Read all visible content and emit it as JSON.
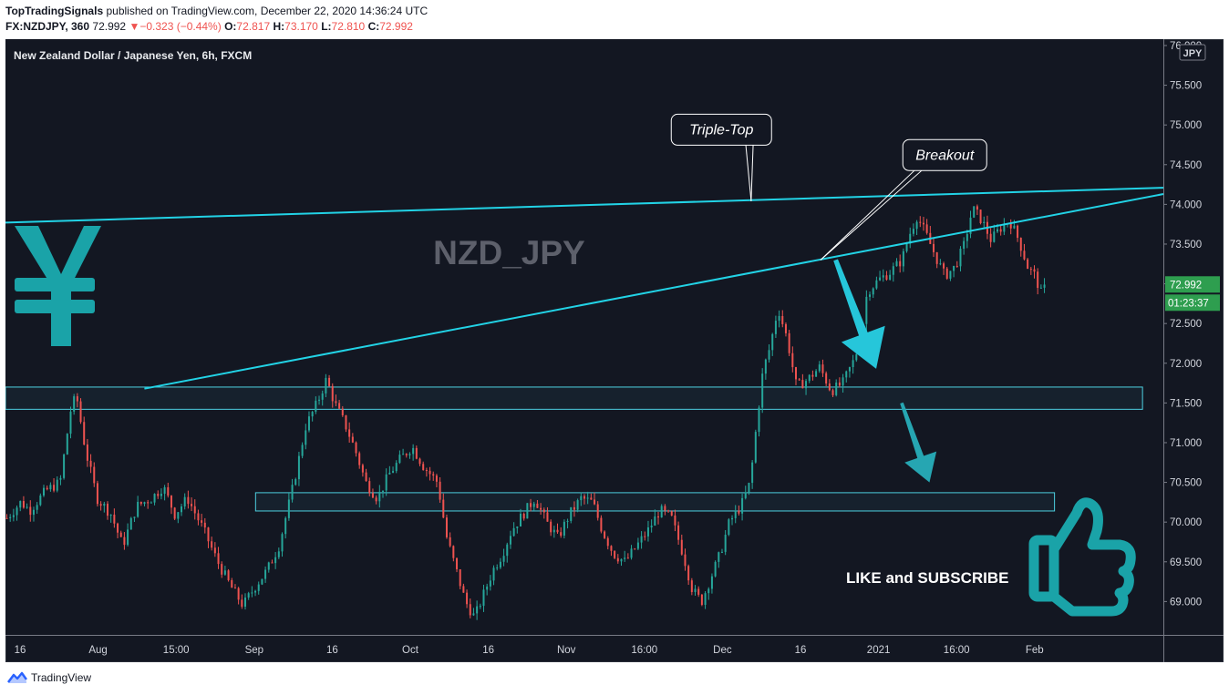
{
  "header": {
    "publisher": "TopTradingSignals",
    "published_text": "published on TradingView.com, December 22, 2020 14:36:24 UTC",
    "symbol": "FX:NZDJPY, 360",
    "last": "72.992",
    "change_arrow": "▼",
    "change": "−0.323 (−0.44%)",
    "o_label": "O:",
    "o_value": "72.817",
    "h_label": "H:",
    "h_value": "73.170",
    "l_label": "L:",
    "l_value": "72.810",
    "c_label": "C:",
    "c_value": "72.992"
  },
  "footer": {
    "brand": "TradingView",
    "logo_icon": "tradingview-logo-icon"
  },
  "chart_data": {
    "type": "candlestick",
    "title": "New Zealand Dollar / Japanese Yen, 6h, FXCM",
    "watermark": "NZD_JPY",
    "currency_badge": "JPY",
    "ylim": [
      68.58,
      76.08
    ],
    "y_ticks": [
      "76.000",
      "75.500",
      "75.000",
      "74.500",
      "74.000",
      "73.500",
      "73.000",
      "72.500",
      "72.000",
      "71.500",
      "71.000",
      "70.500",
      "70.000",
      "69.500",
      "69.000"
    ],
    "x_ticks": [
      "16",
      "Aug",
      "15:00",
      "Sep",
      "16",
      "Oct",
      "16",
      "Nov",
      "16:00",
      "Dec",
      "16",
      "2021",
      "16:00",
      "Feb"
    ],
    "last_price": "72.992",
    "countdown": "01:23:37",
    "price_path": [
      [
        0.0,
        70.05
      ],
      [
        1.2,
        70.25
      ],
      [
        2.0,
        70.15
      ],
      [
        3.4,
        70.4
      ],
      [
        4.6,
        70.5
      ],
      [
        5.5,
        71.4
      ],
      [
        6.0,
        71.6
      ],
      [
        6.8,
        70.9
      ],
      [
        7.8,
        70.3
      ],
      [
        9.0,
        70.1
      ],
      [
        10.0,
        69.7
      ],
      [
        11.2,
        70.2
      ],
      [
        12.5,
        70.3
      ],
      [
        13.5,
        70.45
      ],
      [
        14.5,
        70.1
      ],
      [
        15.6,
        70.3
      ],
      [
        17.0,
        69.9
      ],
      [
        18.2,
        69.5
      ],
      [
        19.3,
        69.2
      ],
      [
        20.4,
        68.95
      ],
      [
        21.5,
        69.2
      ],
      [
        22.5,
        69.4
      ],
      [
        23.5,
        69.7
      ],
      [
        24.8,
        70.5
      ],
      [
        25.8,
        71.2
      ],
      [
        26.8,
        71.5
      ],
      [
        27.6,
        71.8
      ],
      [
        28.3,
        71.5
      ],
      [
        29.3,
        71.2
      ],
      [
        30.1,
        70.9
      ],
      [
        31.0,
        70.5
      ],
      [
        32.0,
        70.3
      ],
      [
        33.0,
        70.6
      ],
      [
        34.0,
        70.8
      ],
      [
        35.0,
        70.95
      ],
      [
        36.0,
        70.7
      ],
      [
        37.2,
        70.5
      ],
      [
        38.0,
        69.8
      ],
      [
        38.8,
        69.4
      ],
      [
        39.6,
        69.0
      ],
      [
        40.4,
        68.8
      ],
      [
        41.2,
        69.1
      ],
      [
        42.0,
        69.4
      ],
      [
        42.8,
        69.6
      ],
      [
        43.6,
        69.9
      ],
      [
        44.6,
        70.1
      ],
      [
        45.6,
        70.3
      ],
      [
        46.6,
        70.0
      ],
      [
        47.6,
        69.8
      ],
      [
        48.6,
        70.1
      ],
      [
        49.6,
        70.3
      ],
      [
        50.6,
        70.25
      ],
      [
        51.4,
        69.9
      ],
      [
        52.4,
        69.6
      ],
      [
        53.4,
        69.5
      ],
      [
        54.4,
        69.7
      ],
      [
        55.4,
        69.9
      ],
      [
        56.4,
        70.15
      ],
      [
        57.4,
        70.05
      ],
      [
        58.4,
        69.6
      ],
      [
        59.2,
        69.15
      ],
      [
        60.0,
        69.0
      ],
      [
        60.8,
        69.3
      ],
      [
        61.6,
        69.6
      ],
      [
        62.4,
        70.0
      ],
      [
        63.4,
        70.2
      ],
      [
        64.2,
        70.5
      ],
      [
        64.8,
        71.3
      ],
      [
        65.3,
        71.9
      ],
      [
        65.9,
        72.2
      ],
      [
        66.6,
        72.7
      ],
      [
        67.4,
        72.3
      ],
      [
        68.2,
        71.7
      ],
      [
        69.2,
        71.8
      ],
      [
        70.2,
        71.95
      ],
      [
        71.2,
        71.65
      ],
      [
        72.2,
        71.75
      ],
      [
        73.2,
        72.05
      ],
      [
        73.8,
        72.35
      ],
      [
        74.3,
        72.9
      ],
      [
        75.3,
        73.05
      ],
      [
        76.3,
        73.15
      ],
      [
        77.3,
        73.3
      ],
      [
        77.9,
        73.6
      ],
      [
        78.6,
        73.85
      ],
      [
        79.3,
        73.65
      ],
      [
        80.2,
        73.35
      ],
      [
        81.0,
        73.1
      ],
      [
        81.8,
        73.2
      ],
      [
        82.6,
        73.45
      ],
      [
        83.4,
        73.95
      ],
      [
        84.2,
        73.8
      ],
      [
        85.0,
        73.55
      ],
      [
        85.8,
        73.7
      ],
      [
        86.6,
        73.8
      ],
      [
        87.4,
        73.55
      ],
      [
        88.2,
        73.2
      ],
      [
        88.8,
        73.1
      ],
      [
        89.4,
        72.85
      ],
      [
        89.8,
        72.99
      ]
    ],
    "trendlines": [
      {
        "name": "resistance-line",
        "from": [
          0,
          73.77
        ],
        "to": [
          100,
          74.21
        ]
      },
      {
        "name": "ascending-support-line",
        "from": [
          12,
          71.68
        ],
        "to": [
          100,
          74.13
        ]
      }
    ],
    "zones": [
      {
        "name": "support-zone-upper",
        "x_from": 0,
        "x_to": 98.2,
        "y_low": 71.42,
        "y_high": 71.7
      },
      {
        "name": "support-zone-lower",
        "x_from": 21.6,
        "x_to": 90.6,
        "y_low": 70.14,
        "y_high": 70.37
      }
    ],
    "annotations": [
      {
        "name": "triple-top-callout",
        "text": "Triple-Top",
        "box_at": [
          57.5,
          74.94
        ],
        "point_to": [
          64.4,
          74.04
        ]
      },
      {
        "name": "breakout-callout",
        "text": "Breakout",
        "box_at": [
          77.5,
          74.62
        ],
        "point_to": [
          70.4,
          73.3
        ]
      }
    ],
    "arrows": [
      {
        "name": "bearish-arrow-primary",
        "from": [
          71.7,
          73.3
        ],
        "to": [
          75.2,
          71.93
        ],
        "color": "#26c6da"
      },
      {
        "name": "bearish-arrow-secondary",
        "from": [
          77.4,
          71.5
        ],
        "to": [
          79.8,
          70.5
        ],
        "color": "#26a6b2"
      }
    ],
    "cta_text": "LIKE and SUBSCRIBE",
    "icons": {
      "currency": "yen-sign-icon",
      "cta": "thumbs-up-icon"
    },
    "colors": {
      "background": "#131722",
      "up": "#26a69a",
      "down": "#ef5350",
      "trendline": "#22d3e6",
      "zone": "#4dd0e1",
      "yen": "#1aa3a8",
      "last_price_badge": "#2e9e4f",
      "text": "#d1d4dc"
    }
  }
}
